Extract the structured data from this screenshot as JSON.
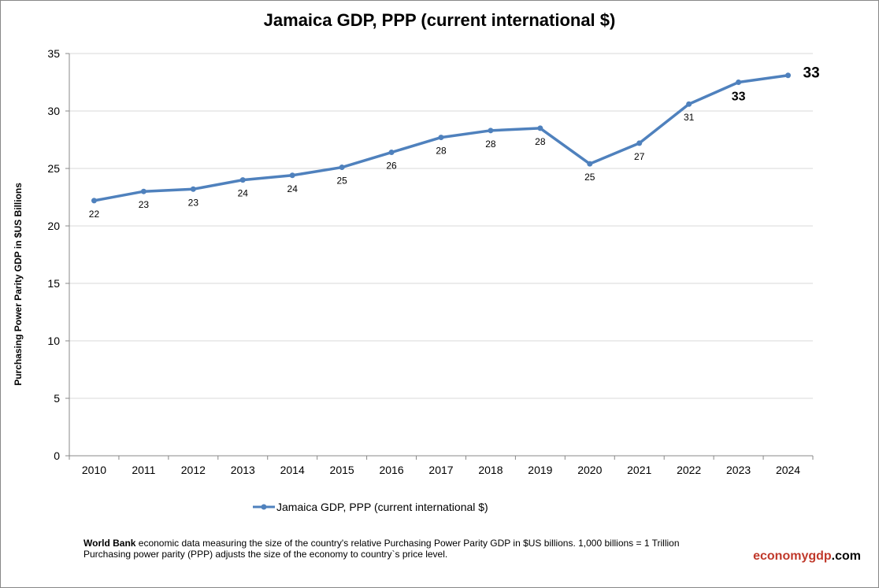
{
  "chart_data": {
    "type": "line",
    "title": "Jamaica GDP, PPP (current international $)",
    "ylabel": "Purchasing Power Parity GDP in $US Billions",
    "xlabel": "",
    "ylim": [
      0,
      35
    ],
    "yticks": [
      0,
      5,
      10,
      15,
      20,
      25,
      30,
      35
    ],
    "grid": true,
    "legend_position": "bottom",
    "categories": [
      "2010",
      "2011",
      "2012",
      "2013",
      "2014",
      "2015",
      "2016",
      "2017",
      "2018",
      "2019",
      "2020",
      "2021",
      "2022",
      "2023",
      "2024"
    ],
    "series": [
      {
        "name": "Jamaica GDP, PPP (current international $)",
        "color": "#4f81bd",
        "values": [
          22.2,
          23.0,
          23.2,
          24.0,
          24.4,
          25.1,
          26.4,
          27.7,
          28.3,
          28.5,
          25.4,
          27.2,
          30.6,
          32.5,
          33.1
        ],
        "labels": [
          "22",
          "23",
          "23",
          "24",
          "24",
          "25",
          "26",
          "28",
          "28",
          "28",
          "25",
          "27",
          "31",
          "33",
          "33"
        ]
      }
    ]
  },
  "footer": {
    "bold": "World Bank",
    "line1": " economic data  measuring the size of the country's relative  Purchasing Power Parity GDP in $US billions. 1,000 billions = 1 Trillion",
    "line2": "Purchasing power parity (PPP) adjusts the size of the economy to country`s price level."
  },
  "brand": {
    "red": "economygdp",
    "black": ".com",
    "color": "#c0392b"
  }
}
